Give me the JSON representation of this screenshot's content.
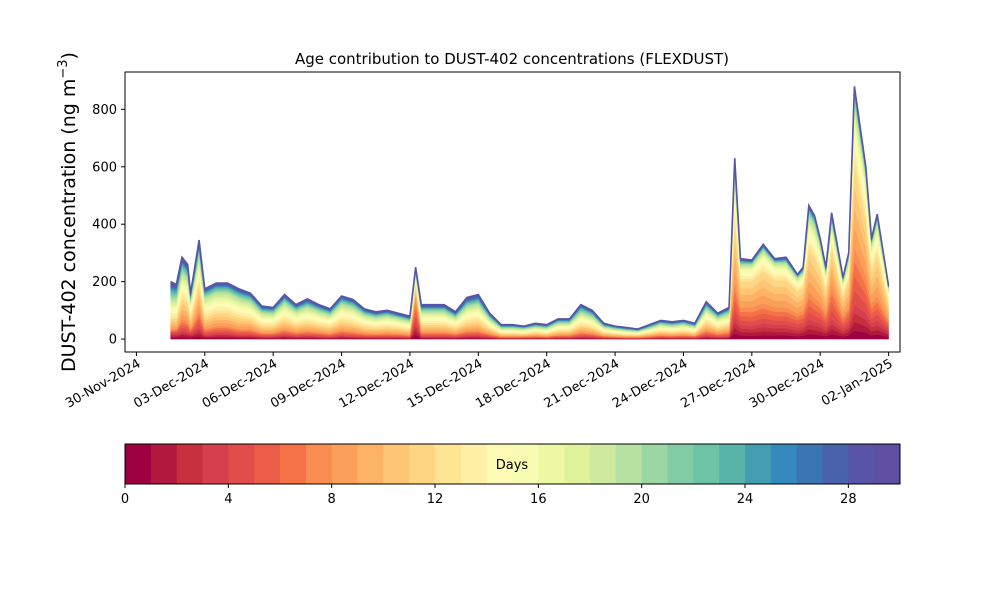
{
  "chart_data": [
    {
      "type": "area",
      "stacked": true,
      "title": "Age contribution to DUST-402 concentrations (FLEXDUST)",
      "ylabel": "DUST-402 concentration (ng m⁻³)",
      "ylabel_parts": [
        "DUST-402 concentration (ng m",
        "−3",
        ")"
      ],
      "xlabel": "",
      "ylim": [
        -45,
        930
      ],
      "xlim": [
        "2024-11-29T12:00",
        "2025-01-02T12:00"
      ],
      "yticks": [
        0,
        200,
        400,
        600,
        800
      ],
      "xticks": [
        "30-Nov-2024",
        "03-Dec-2024",
        "06-Dec-2024",
        "09-Dec-2024",
        "12-Dec-2024",
        "15-Dec-2024",
        "18-Dec-2024",
        "21-Dec-2024",
        "24-Dec-2024",
        "27-Dec-2024",
        "30-Dec-2024",
        "02-Jan-2025"
      ],
      "legend": "none",
      "series_count": 30,
      "total_series": {
        "x": [
          "2024-12-01T12:00",
          "2024-12-01T18:00",
          "2024-12-02T00:00",
          "2024-12-02T06:00",
          "2024-12-02T09:00",
          "2024-12-02T12:00",
          "2024-12-02T18:00",
          "2024-12-03T00:00",
          "2024-12-03T12:00",
          "2024-12-04T00:00",
          "2024-12-04T12:00",
          "2024-12-05T00:00",
          "2024-12-05T12:00",
          "2024-12-06T00:00",
          "2024-12-06T12:00",
          "2024-12-07T00:00",
          "2024-12-07T12:00",
          "2024-12-08T00:00",
          "2024-12-08T12:00",
          "2024-12-09T00:00",
          "2024-12-09T12:00",
          "2024-12-10T00:00",
          "2024-12-10T12:00",
          "2024-12-11T00:00",
          "2024-12-11T12:00",
          "2024-12-12T00:00",
          "2024-12-12T06:00",
          "2024-12-12T12:00",
          "2024-12-13T00:00",
          "2024-12-13T12:00",
          "2024-12-14T00:00",
          "2024-12-14T12:00",
          "2024-12-15T00:00",
          "2024-12-15T12:00",
          "2024-12-16T00:00",
          "2024-12-16T12:00",
          "2024-12-17T00:00",
          "2024-12-17T12:00",
          "2024-12-18T00:00",
          "2024-12-18T12:00",
          "2024-12-19T00:00",
          "2024-12-19T12:00",
          "2024-12-20T00:00",
          "2024-12-20T12:00",
          "2024-12-21T00:00",
          "2024-12-21T12:00",
          "2024-12-22T00:00",
          "2024-12-22T12:00",
          "2024-12-23T00:00",
          "2024-12-23T12:00",
          "2024-12-24T00:00",
          "2024-12-24T12:00",
          "2024-12-25T00:00",
          "2024-12-25T12:00",
          "2024-12-26T00:00",
          "2024-12-26T06:00",
          "2024-12-26T12:00",
          "2024-12-27T00:00",
          "2024-12-27T12:00",
          "2024-12-28T00:00",
          "2024-12-28T12:00",
          "2024-12-29T00:00",
          "2024-12-29T06:00",
          "2024-12-29T12:00",
          "2024-12-29T18:00",
          "2024-12-30T00:00",
          "2024-12-30T06:00",
          "2024-12-30T12:00",
          "2024-12-31T00:00",
          "2024-12-31T06:00",
          "2024-12-31T12:00",
          "2025-01-01T00:00",
          "2025-01-01T06:00",
          "2025-01-01T12:00",
          "2025-01-02T00:00"
        ],
        "values": [
          200,
          190,
          285,
          260,
          160,
          220,
          345,
          175,
          195,
          195,
          175,
          160,
          115,
          110,
          155,
          120,
          140,
          120,
          105,
          150,
          140,
          105,
          95,
          100,
          90,
          80,
          250,
          120,
          120,
          120,
          95,
          145,
          155,
          90,
          50,
          50,
          45,
          55,
          50,
          70,
          70,
          120,
          100,
          55,
          45,
          40,
          35,
          50,
          65,
          60,
          65,
          55,
          130,
          90,
          110,
          630,
          280,
          275,
          330,
          280,
          285,
          225,
          250,
          465,
          430,
          350,
          250,
          440,
          215,
          300,
          880,
          600,
          350,
          435,
          185
        ]
      },
      "age_series": [
        {
          "name": "0",
          "values": [
            20,
            20,
            30,
            25,
            20,
            25,
            40,
            15,
            20,
            20,
            15,
            15,
            10,
            10,
            15,
            10,
            12,
            10,
            8,
            12,
            10,
            8,
            8,
            8,
            8,
            6,
            60,
            10,
            10,
            10,
            8,
            12,
            12,
            8,
            4,
            4,
            4,
            5,
            4,
            6,
            6,
            10,
            8,
            5,
            4,
            3,
            3,
            4,
            6,
            5,
            6,
            5,
            12,
            8,
            10,
            80,
            50,
            45,
            55,
            50,
            50,
            40,
            45,
            70,
            60,
            55,
            40,
            70,
            35,
            50,
            120,
            90,
            55,
            65,
            30
          ]
        },
        {
          "name": "4",
          "values": [
            15,
            15,
            40,
            35,
            15,
            30,
            60,
            20,
            25,
            25,
            20,
            20,
            12,
            12,
            18,
            14,
            16,
            14,
            12,
            18,
            16,
            12,
            10,
            12,
            10,
            9,
            80,
            14,
            14,
            14,
            11,
            16,
            18,
            10,
            5,
            5,
            5,
            6,
            5,
            8,
            8,
            14,
            12,
            6,
            5,
            4,
            4,
            6,
            8,
            7,
            8,
            6,
            18,
            12,
            15,
            120,
            60,
            65,
            70,
            60,
            60,
            50,
            55,
            95,
            85,
            70,
            50,
            120,
            45,
            60,
            200,
            130,
            70,
            85,
            35
          ]
        },
        {
          "name": "8",
          "values": [
            35,
            35,
            70,
            65,
            40,
            55,
            90,
            40,
            45,
            45,
            40,
            35,
            25,
            24,
            34,
            26,
            30,
            26,
            23,
            33,
            30,
            23,
            21,
            22,
            20,
            17,
            50,
            26,
            26,
            26,
            20,
            30,
            33,
            18,
            10,
            10,
            9,
            11,
            10,
            14,
            14,
            24,
            20,
            11,
            9,
            8,
            7,
            10,
            13,
            12,
            13,
            11,
            28,
            19,
            23,
            200,
            90,
            90,
            110,
            95,
            95,
            75,
            80,
            150,
            140,
            115,
            80,
            125,
            70,
            95,
            280,
            190,
            110,
            140,
            60
          ]
        },
        {
          "name": "12",
          "values": [
            40,
            38,
            55,
            50,
            35,
            45,
            60,
            40,
            42,
            42,
            38,
            35,
            26,
            25,
            34,
            27,
            31,
            27,
            24,
            34,
            32,
            24,
            21,
            23,
            20,
            18,
            25,
            27,
            27,
            27,
            21,
            32,
            34,
            20,
            11,
            11,
            10,
            12,
            11,
            16,
            16,
            26,
            22,
            12,
            10,
            9,
            8,
            11,
            14,
            13,
            14,
            12,
            28,
            20,
            24,
            120,
            40,
            40,
            50,
            40,
            40,
            32,
            34,
            70,
            70,
            55,
            38,
            55,
            32,
            45,
            150,
            110,
            65,
            80,
            35
          ]
        },
        {
          "name": "16",
          "values": [
            35,
            33,
            40,
            37,
            25,
            33,
            45,
            30,
            32,
            32,
            30,
            27,
            20,
            19,
            26,
            21,
            24,
            21,
            18,
            26,
            24,
            18,
            16,
            17,
            15,
            13,
            17,
            20,
            20,
            20,
            16,
            24,
            26,
            15,
            9,
            9,
            8,
            9,
            9,
            12,
            12,
            20,
            17,
            9,
            8,
            7,
            6,
            8,
            11,
            10,
            11,
            9,
            20,
            15,
            18,
            60,
            20,
            20,
            25,
            20,
            21,
            16,
            18,
            45,
            45,
            35,
            25,
            40,
            20,
            30,
            80,
            50,
            30,
            40,
            17
          ]
        },
        {
          "name": "20",
          "values": [
            25,
            24,
            25,
            23,
            12,
            17,
            25,
            15,
            16,
            16,
            16,
            15,
            11,
            10,
            14,
            11,
            13,
            11,
            10,
            14,
            13,
            10,
            9,
            9,
            8,
            8,
            9,
            11,
            11,
            11,
            9,
            14,
            15,
            10,
            6,
            6,
            5,
            6,
            6,
            8,
            8,
            14,
            11,
            6,
            5,
            5,
            4,
            6,
            7,
            7,
            7,
            6,
            13,
            9,
            11,
            30,
            10,
            8,
            10,
            8,
            9,
            7,
            9,
            20,
            18,
            12,
            9,
            15,
            8,
            12,
            30,
            18,
            12,
            15,
            6
          ]
        },
        {
          "name": "24",
          "values": [
            18,
            17,
            15,
            15,
            8,
            10,
            15,
            10,
            10,
            10,
            10,
            9,
            7,
            7,
            9,
            7,
            9,
            7,
            7,
            9,
            9,
            7,
            6,
            6,
            5,
            5,
            6,
            7,
            7,
            7,
            6,
            10,
            10,
            6,
            3,
            3,
            3,
            4,
            3,
            4,
            4,
            8,
            7,
            4,
            3,
            3,
            2,
            3,
            4,
            4,
            4,
            4,
            8,
            5,
            6,
            12,
            6,
            4,
            6,
            4,
            6,
            3,
            5,
            10,
            8,
            5,
            5,
            9,
            3,
            6,
            12,
            8,
            5,
            6,
            2
          ]
        },
        {
          "name": "28",
          "values": [
            12,
            8,
            10,
            10,
            5,
            5,
            10,
            5,
            5,
            5,
            6,
            4,
            4,
            3,
            5,
            4,
            5,
            4,
            3,
            4,
            4,
            3,
            4,
            3,
            4,
            4,
            3,
            5,
            5,
            5,
            4,
            7,
            7,
            3,
            2,
            2,
            1,
            2,
            2,
            2,
            2,
            4,
            3,
            2,
            1,
            1,
            1,
            2,
            2,
            2,
            2,
            2,
            3,
            2,
            3,
            8,
            4,
            3,
            4,
            3,
            4,
            2,
            4,
            5,
            4,
            3,
            3,
            6,
            2,
            2,
            8,
            4,
            3,
            4,
            0
          ]
        }
      ]
    },
    {
      "type": "colorbar",
      "label": "Days",
      "range": [
        0,
        30
      ],
      "steps": 30,
      "ticks": [
        0,
        4,
        8,
        12,
        16,
        20,
        24,
        28
      ],
      "colormap": "Spectral",
      "colors": [
        "#9e0142",
        "#b2193f",
        "#c7303c",
        "#d63f4e",
        "#e24c4a",
        "#ec5d48",
        "#f47245",
        "#f88c51",
        "#fba05b",
        "#fdb366",
        "#fec574",
        "#fed683",
        "#fee593",
        "#fff0a6",
        "#fefbb6",
        "#f7fcb3",
        "#edf8a3",
        "#e1f39a",
        "#cdea9e",
        "#b6e1a0",
        "#9cd6a4",
        "#81cca5",
        "#6cc3a5",
        "#58b3a9",
        "#449eb3",
        "#3489bd",
        "#3b76b2",
        "#4862ac",
        "#5854a7",
        "#5e4fa2"
      ]
    }
  ]
}
